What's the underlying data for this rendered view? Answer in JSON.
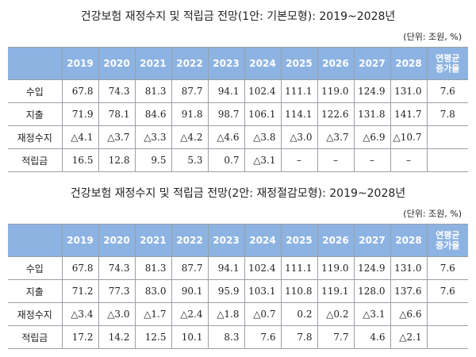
{
  "tables": [
    {
      "title": "건강보험 재정수지 및 적립금 전망(1안: 기본모형): 2019~2028년",
      "unit": "(단위: 조원, %)",
      "years": [
        "2019",
        "2020",
        "2021",
        "2022",
        "2023",
        "2024",
        "2025",
        "2026",
        "2027",
        "2028"
      ],
      "cagr_header": "연평균\n증가율",
      "rows": [
        {
          "label": "수입",
          "values": [
            "67.8",
            "74.3",
            "81.3",
            "87.7",
            "94.1",
            "102.4",
            "111.1",
            "119.0",
            "124.9",
            "131.0"
          ],
          "cagr": "7.6"
        },
        {
          "label": "지출",
          "values": [
            "71.9",
            "78.1",
            "84.6",
            "91.8",
            "98.7",
            "106.1",
            "114.1",
            "122.6",
            "131.8",
            "141.7"
          ],
          "cagr": "7.8"
        },
        {
          "label": "재정수지",
          "values": [
            "△4.1",
            "△3.7",
            "△3.3",
            "△4.2",
            "△4.6",
            "△3.8",
            "△3.0",
            "△3.7",
            "△6.9",
            "△10.7"
          ],
          "cagr": ""
        },
        {
          "label": "적립금",
          "values": [
            "16.5",
            "12.8",
            "9.5",
            "5.3",
            "0.7",
            "△3.1",
            "–",
            "–",
            "–",
            "–"
          ],
          "cagr": ""
        }
      ]
    },
    {
      "title": "건강보험 재정수지 및 적립금 전망(2안: 재정절감모형): 2019~2028년",
      "unit": "(단위: 조원, %)",
      "years": [
        "2019",
        "2020",
        "2021",
        "2022",
        "2023",
        "2024",
        "2025",
        "2026",
        "2027",
        "2028"
      ],
      "cagr_header": "연평균\n증가율",
      "rows": [
        {
          "label": "수입",
          "values": [
            "67.8",
            "74.3",
            "81.3",
            "87.7",
            "94.1",
            "102.4",
            "111.1",
            "119.0",
            "124.9",
            "131.0"
          ],
          "cagr": "7.6"
        },
        {
          "label": "지출",
          "values": [
            "71.2",
            "77.3",
            "83.0",
            "90.1",
            "95.9",
            "103.1",
            "110.8",
            "119.1",
            "128.0",
            "137.6"
          ],
          "cagr": "7.6"
        },
        {
          "label": "재정수지",
          "values": [
            "△3.4",
            "△3.0",
            "△1.7",
            "△2.4",
            "△1.8",
            "△0.7",
            "0.2",
            "△0.2",
            "△3.1",
            "△6.6"
          ],
          "cagr": ""
        },
        {
          "label": "적립금",
          "values": [
            "17.2",
            "14.2",
            "12.5",
            "10.1",
            "8.3",
            "7.6",
            "7.8",
            "7.7",
            "4.6",
            "△2.1"
          ],
          "cagr": ""
        }
      ]
    }
  ]
}
